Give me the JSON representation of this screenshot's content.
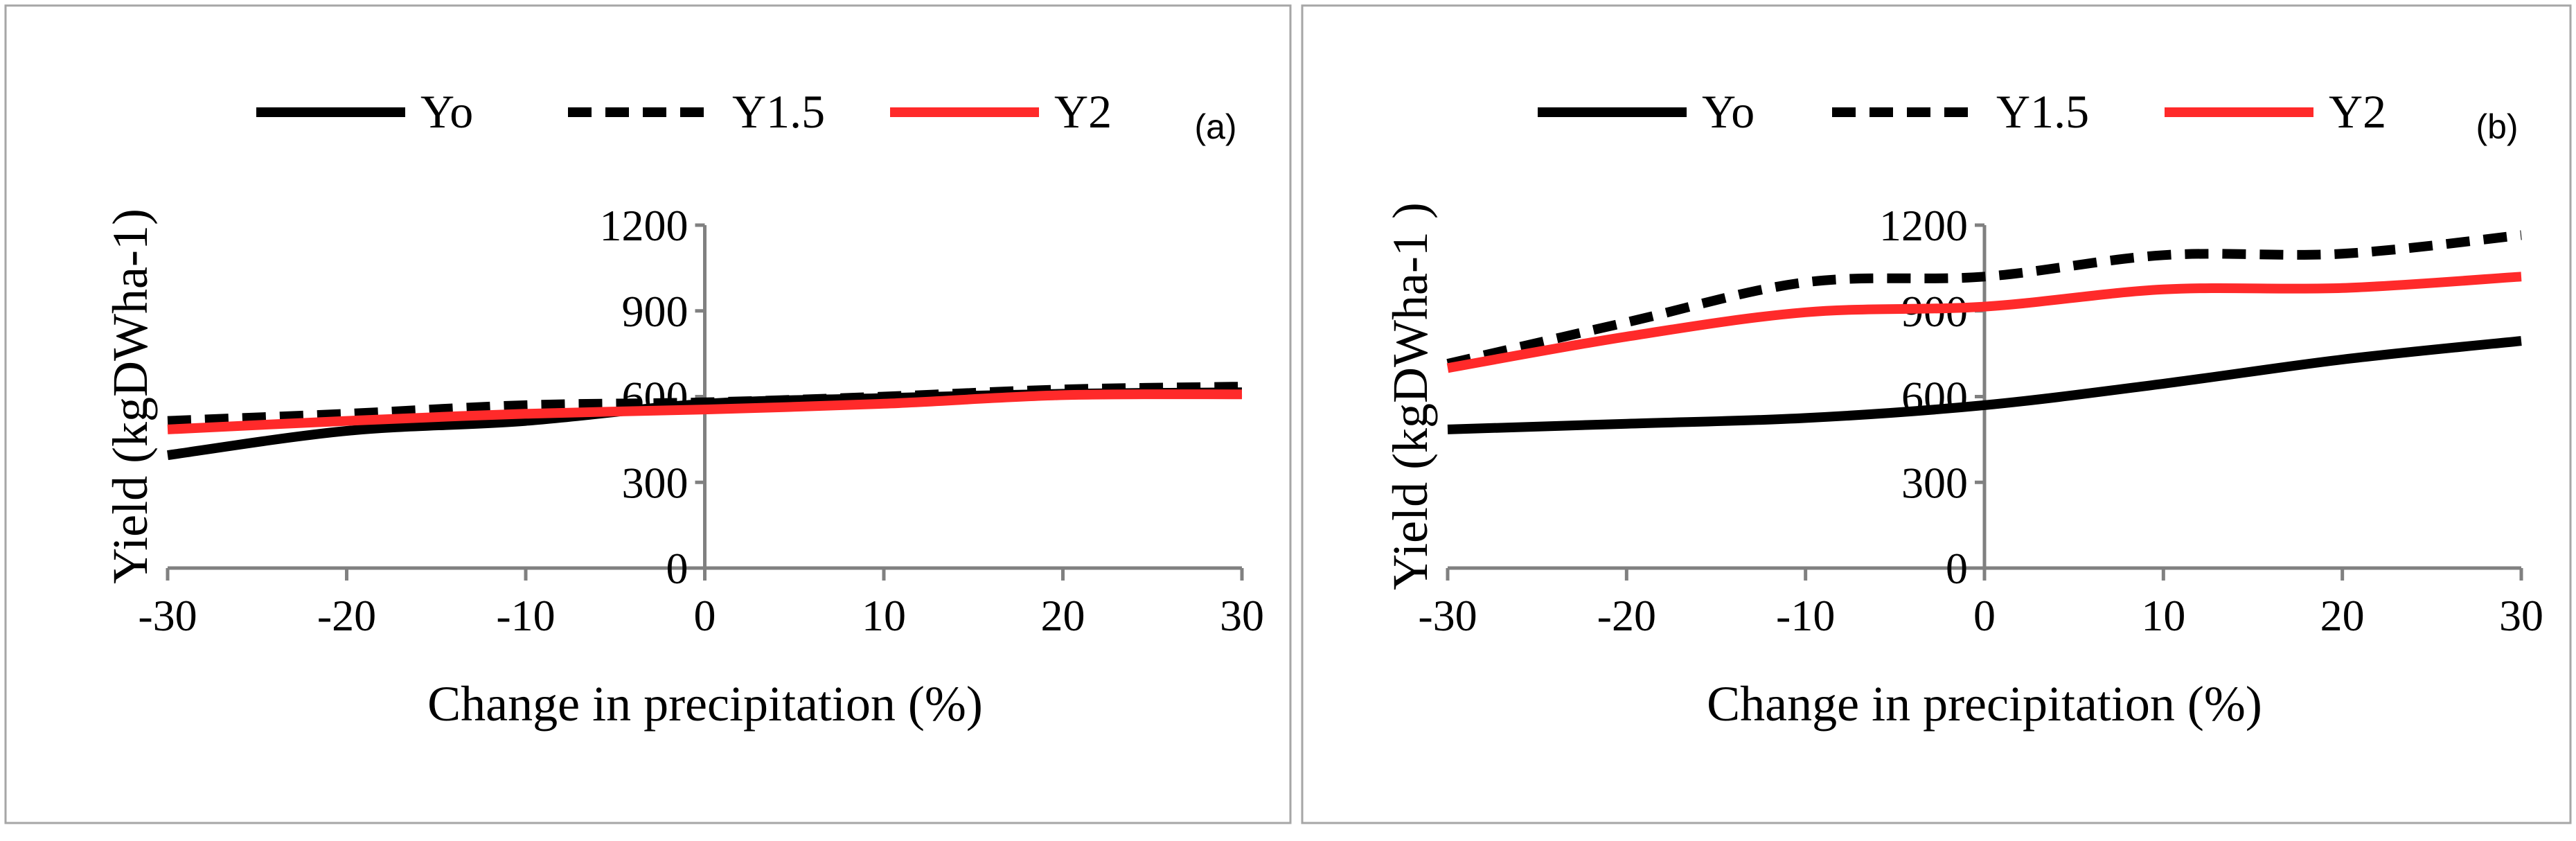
{
  "chart_data": [
    {
      "type": "line",
      "panel_label": "(a)",
      "xlabel": "Change in precipitation (%)",
      "ylabel": "Yield (kgDWha-1)",
      "x": [
        -30,
        -20,
        -10,
        0,
        10,
        20,
        30
      ],
      "xlim": [
        -30,
        30
      ],
      "ylim": [
        0,
        1200
      ],
      "xticks": [
        "-30",
        "-20",
        "-10",
        "0",
        "10",
        "20",
        "30"
      ],
      "yticks": [
        "0",
        "300",
        "600",
        "900",
        "1200"
      ],
      "legend_position": "top",
      "series": [
        {
          "name": "Yo",
          "color": "#000000",
          "dash": "solid",
          "values": [
            395,
            480,
            515,
            575,
            595,
            610,
            615
          ]
        },
        {
          "name": "Y1.5",
          "color": "#000000",
          "dash": "dashed",
          "values": [
            515,
            540,
            570,
            580,
            600,
            625,
            635
          ]
        },
        {
          "name": "Y2",
          "color": "#ff2a2a",
          "dash": "solid",
          "values": [
            485,
            515,
            540,
            555,
            575,
            605,
            608
          ]
        }
      ]
    },
    {
      "type": "line",
      "panel_label": "(b)",
      "xlabel": "Change in precipitation (%)",
      "ylabel": "Yield (kgDWha-1 )",
      "x": [
        -30,
        -20,
        -10,
        0,
        10,
        20,
        30
      ],
      "xlim": [
        -30,
        30
      ],
      "ylim": [
        0,
        1200
      ],
      "xticks": [
        "-30",
        "-20",
        "-10",
        "0",
        "10",
        "20",
        "30"
      ],
      "yticks": [
        "0",
        "300",
        "600",
        "900",
        "1200"
      ],
      "legend_position": "top",
      "series": [
        {
          "name": "Yo",
          "color": "#000000",
          "dash": "solid",
          "values": [
            485,
            505,
            525,
            570,
            645,
            730,
            795
          ]
        },
        {
          "name": "Y1.5",
          "color": "#000000",
          "dash": "dashed",
          "values": [
            715,
            860,
            1000,
            1020,
            1095,
            1100,
            1165
          ]
        },
        {
          "name": "Y2",
          "color": "#ff2a2a",
          "dash": "solid",
          "values": [
            700,
            810,
            895,
            915,
            975,
            980,
            1020
          ]
        }
      ]
    }
  ]
}
